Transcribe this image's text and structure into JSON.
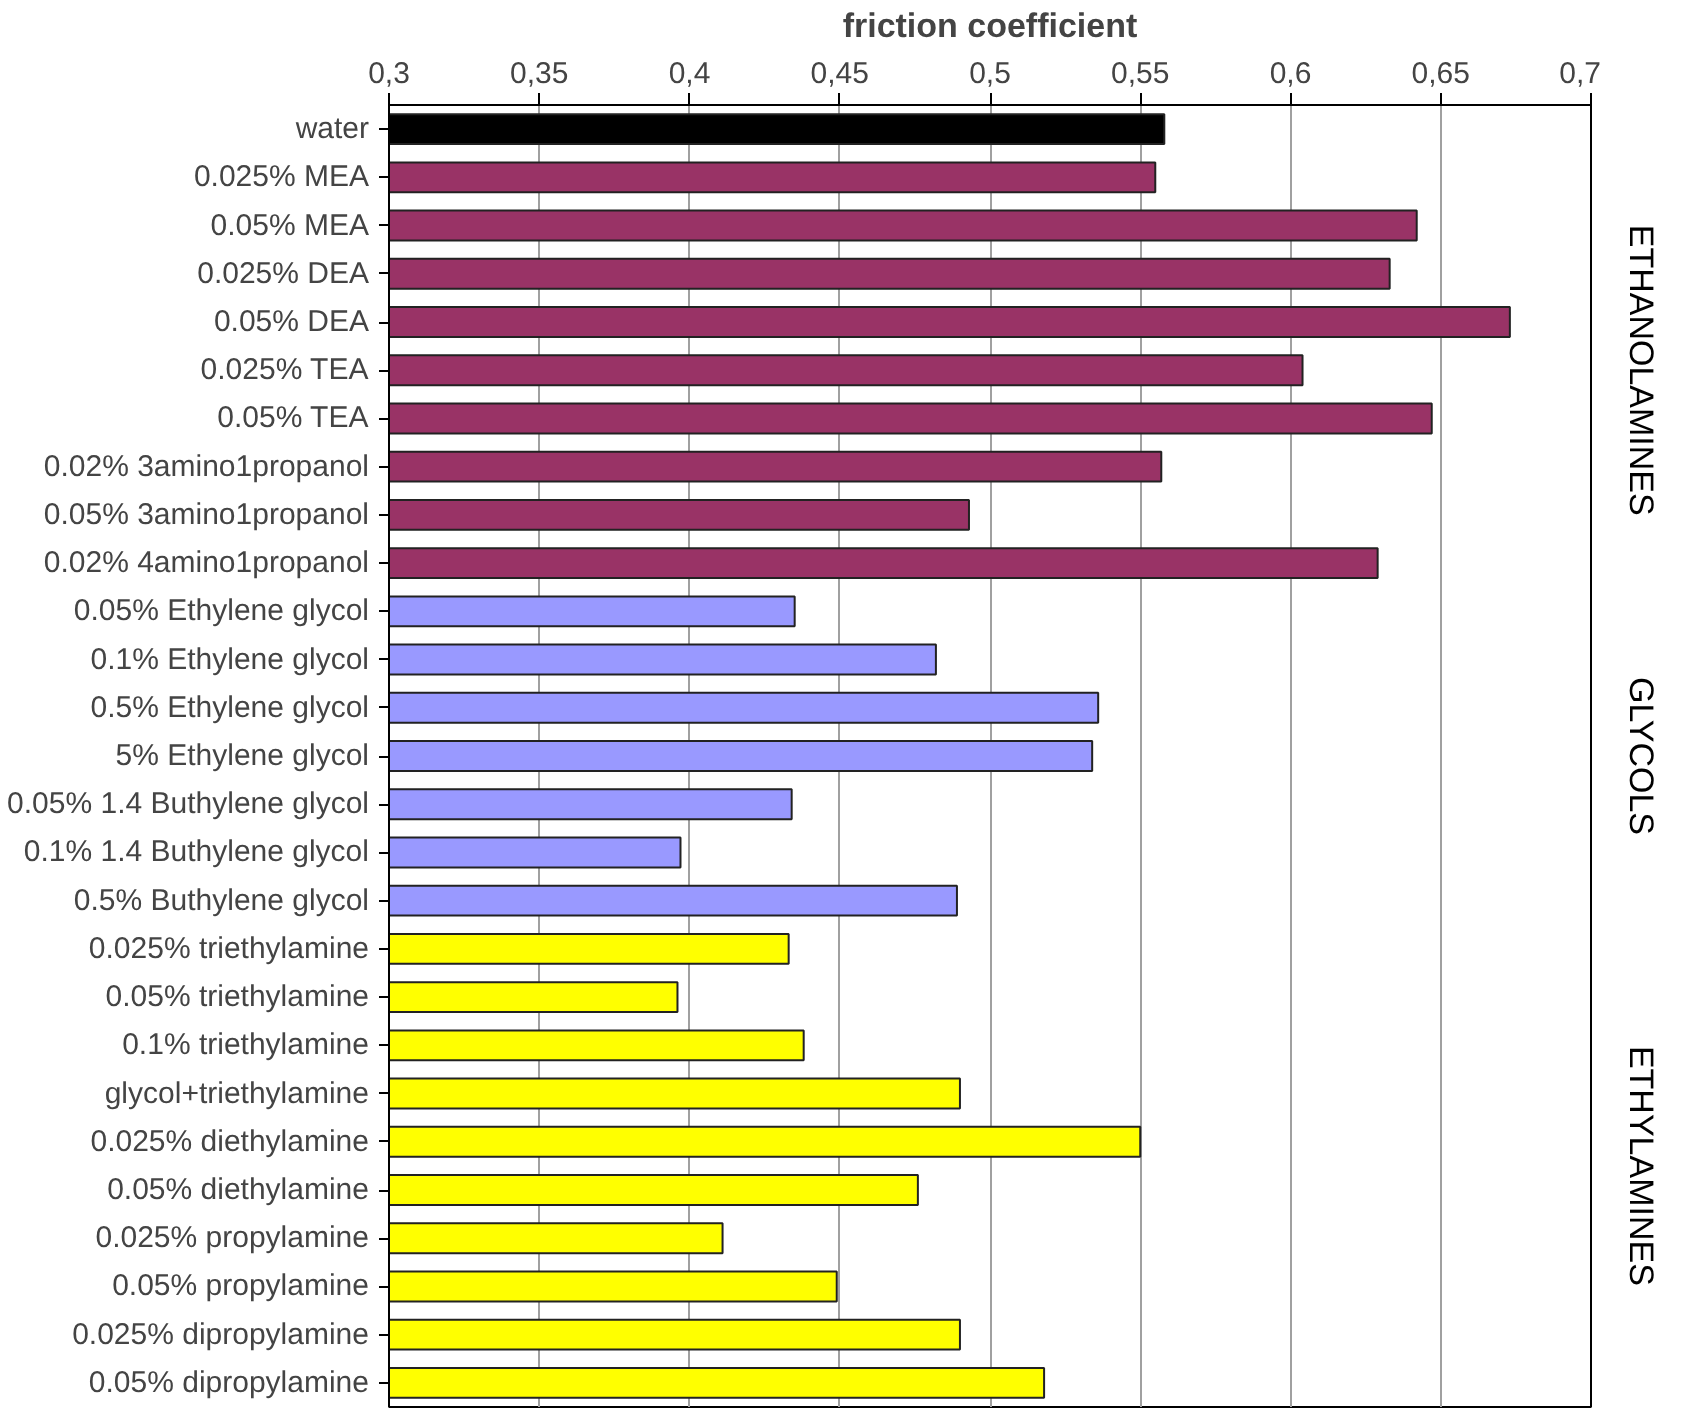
{
  "chart_data": {
    "type": "bar",
    "orientation": "horizontal",
    "xlabel": "friction coefficient",
    "categories": [
      "water",
      "0.025% MEA",
      "0.05% MEA",
      "0.025% DEA",
      "0.05% DEA",
      "0.025% TEA",
      "0.05% TEA",
      "0.02% 3amino1propanol",
      "0.05% 3amino1propanol",
      "0.02% 4amino1propanol",
      "0.05% Ethylene glycol",
      "0.1% Ethylene glycol",
      "0.5% Ethylene glycol",
      "5% Ethylene glycol",
      "0.05% 1.4 Buthylene glycol",
      "0.1% 1.4 Buthylene glycol",
      "0.5% Buthylene glycol",
      "0.025% triethylamine",
      "0.05% triethylamine",
      "0.1% triethylamine",
      "glycol+triethylamine",
      "0.025% diethylamine",
      "0.05% diethylamine",
      "0.025% propylamine",
      "0.05% propylamine",
      "0.025% dipropylamine",
      "0.05% dipropylamine"
    ],
    "series": [
      {
        "color": "#000000",
        "values": [
          0.558,
          null,
          null,
          null,
          null,
          null,
          null,
          null,
          null,
          null,
          null,
          null,
          null,
          null,
          null,
          null,
          null,
          null,
          null,
          null,
          null,
          null,
          null,
          null,
          null,
          null,
          null
        ]
      },
      {
        "name": "ETHANOLAMINES",
        "color": "#993366",
        "values": [
          null,
          0.555,
          0.642,
          0.633,
          0.673,
          0.604,
          0.647,
          0.557,
          0.493,
          0.629,
          null,
          null,
          null,
          null,
          null,
          null,
          null,
          null,
          null,
          null,
          null,
          null,
          null,
          null,
          null,
          null,
          null
        ]
      },
      {
        "name": "GLYCOLS",
        "color": "#9999ff",
        "values": [
          null,
          null,
          null,
          null,
          null,
          null,
          null,
          null,
          null,
          null,
          0.435,
          0.482,
          0.536,
          0.534,
          0.434,
          0.397,
          0.489,
          null,
          null,
          null,
          null,
          null,
          null,
          null,
          null,
          null,
          null
        ]
      },
      {
        "name": "ETHYLAMINES",
        "color": "#ffff00",
        "values": [
          null,
          null,
          null,
          null,
          null,
          null,
          null,
          null,
          null,
          null,
          null,
          null,
          null,
          null,
          null,
          null,
          null,
          0.433,
          0.396,
          0.438,
          0.49,
          0.55,
          0.476,
          0.411,
          0.449,
          0.49,
          0.518
        ]
      }
    ],
    "xlim": [
      0.3,
      0.7
    ],
    "xticks": [
      {
        "value": 0.3,
        "label": "0,3"
      },
      {
        "value": 0.35,
        "label": "0,35"
      },
      {
        "value": 0.4,
        "label": "0,4"
      },
      {
        "value": 0.45,
        "label": "0,45"
      },
      {
        "value": 0.5,
        "label": "0,5"
      },
      {
        "value": 0.55,
        "label": "0,55"
      },
      {
        "value": 0.6,
        "label": "0,6"
      },
      {
        "value": 0.65,
        "label": "0,65"
      },
      {
        "value": 0.7,
        "label": "0,7"
      }
    ],
    "grid": "x"
  }
}
